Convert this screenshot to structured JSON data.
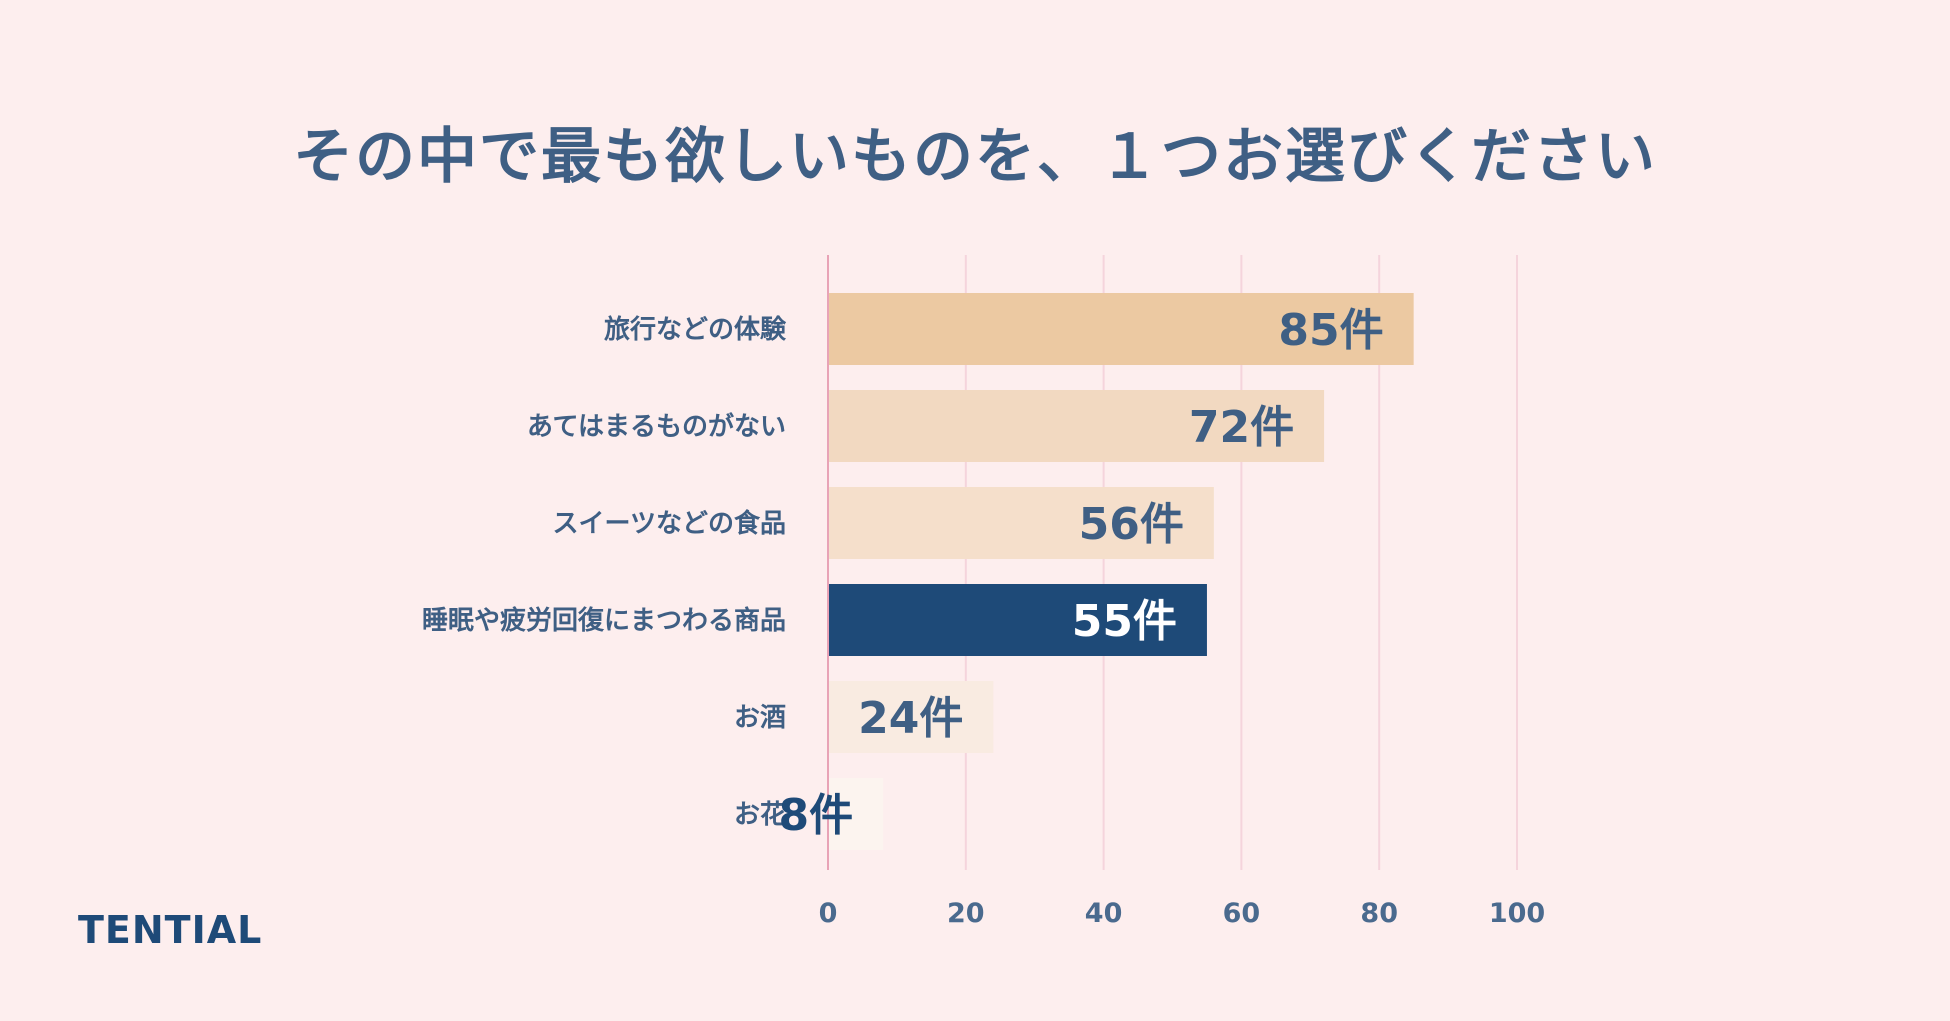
{
  "brand": {
    "logo_text": "TENTIAL"
  },
  "chart_data": {
    "type": "bar",
    "orientation": "horizontal",
    "title": "その中で最も欲しいものを、１つお選びください",
    "xlabel": "",
    "ylabel": "",
    "categories": [
      "旅行などの体験",
      "あてはまるものがない",
      "スイーツなどの食品",
      "睡眠や疲労回復にまつわる商品",
      "お酒",
      "お花"
    ],
    "values": [
      85,
      72,
      56,
      55,
      24,
      8
    ],
    "value_labels": [
      "85件",
      "72件",
      "56件",
      "55件",
      "24件",
      "8件"
    ],
    "bar_colors": [
      "#ecc9a2",
      "#f2d9c1",
      "#f5dfcb",
      "#1e4a78",
      "#f9ebe1",
      "#fcf4ef"
    ],
    "value_label_colors": [
      "#3f5f84",
      "#3f5f84",
      "#3f5f84",
      "#ffffff",
      "#3f5f84",
      "#1e4a78"
    ],
    "xlim": [
      0,
      100
    ],
    "xticks": [
      0,
      20,
      40,
      60,
      80,
      100
    ],
    "xtick_labels": [
      "0",
      "20",
      "40",
      "60",
      "80",
      "100"
    ],
    "grid": true,
    "colors": {
      "background": "#fdeeee",
      "gridline": "#f5d4dc",
      "axis_line": "#e8a3b6",
      "text": "#3f5f84",
      "highlight": "#1e4a78"
    }
  }
}
